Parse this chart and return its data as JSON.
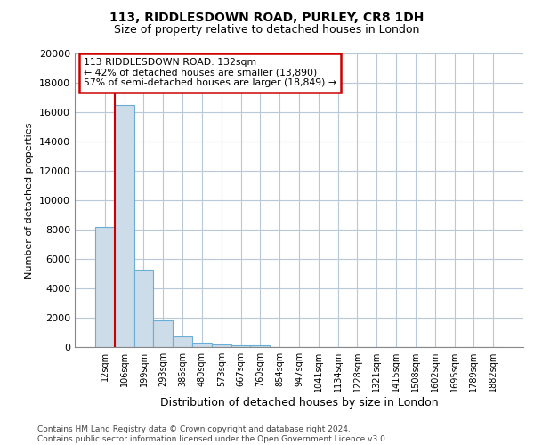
{
  "title1": "113, RIDDLESDOWN ROAD, PURLEY, CR8 1DH",
  "title2": "Size of property relative to detached houses in London",
  "xlabel": "Distribution of detached houses by size in London",
  "ylabel": "Number of detached properties",
  "footnote1": "Contains HM Land Registry data © Crown copyright and database right 2024.",
  "footnote2": "Contains public sector information licensed under the Open Government Licence v3.0.",
  "annotation_line1": "113 RIDDLESDOWN ROAD: 132sqm",
  "annotation_line2": "← 42% of detached houses are smaller (13,890)",
  "annotation_line3": "57% of semi-detached houses are larger (18,849) →",
  "bar_color": "#ccdce9",
  "bar_edge_color": "#6aaed6",
  "grid_color": "#b8c8d8",
  "vline_color": "#cc0000",
  "annotation_box_color": "#cc0000",
  "categories": [
    "12sqm",
    "106sqm",
    "199sqm",
    "293sqm",
    "386sqm",
    "480sqm",
    "573sqm",
    "667sqm",
    "760sqm",
    "854sqm",
    "947sqm",
    "1041sqm",
    "1134sqm",
    "1228sqm",
    "1321sqm",
    "1415sqm",
    "1508sqm",
    "1602sqm",
    "1695sqm",
    "1789sqm",
    "1882sqm"
  ],
  "values": [
    8200,
    16500,
    5300,
    1800,
    750,
    300,
    200,
    150,
    150,
    0,
    0,
    0,
    0,
    0,
    0,
    0,
    0,
    0,
    0,
    0,
    0
  ],
  "ylim": [
    0,
    20000
  ],
  "yticks": [
    0,
    2000,
    4000,
    6000,
    8000,
    10000,
    12000,
    14000,
    16000,
    18000,
    20000
  ],
  "vline_x_index": 0.5
}
